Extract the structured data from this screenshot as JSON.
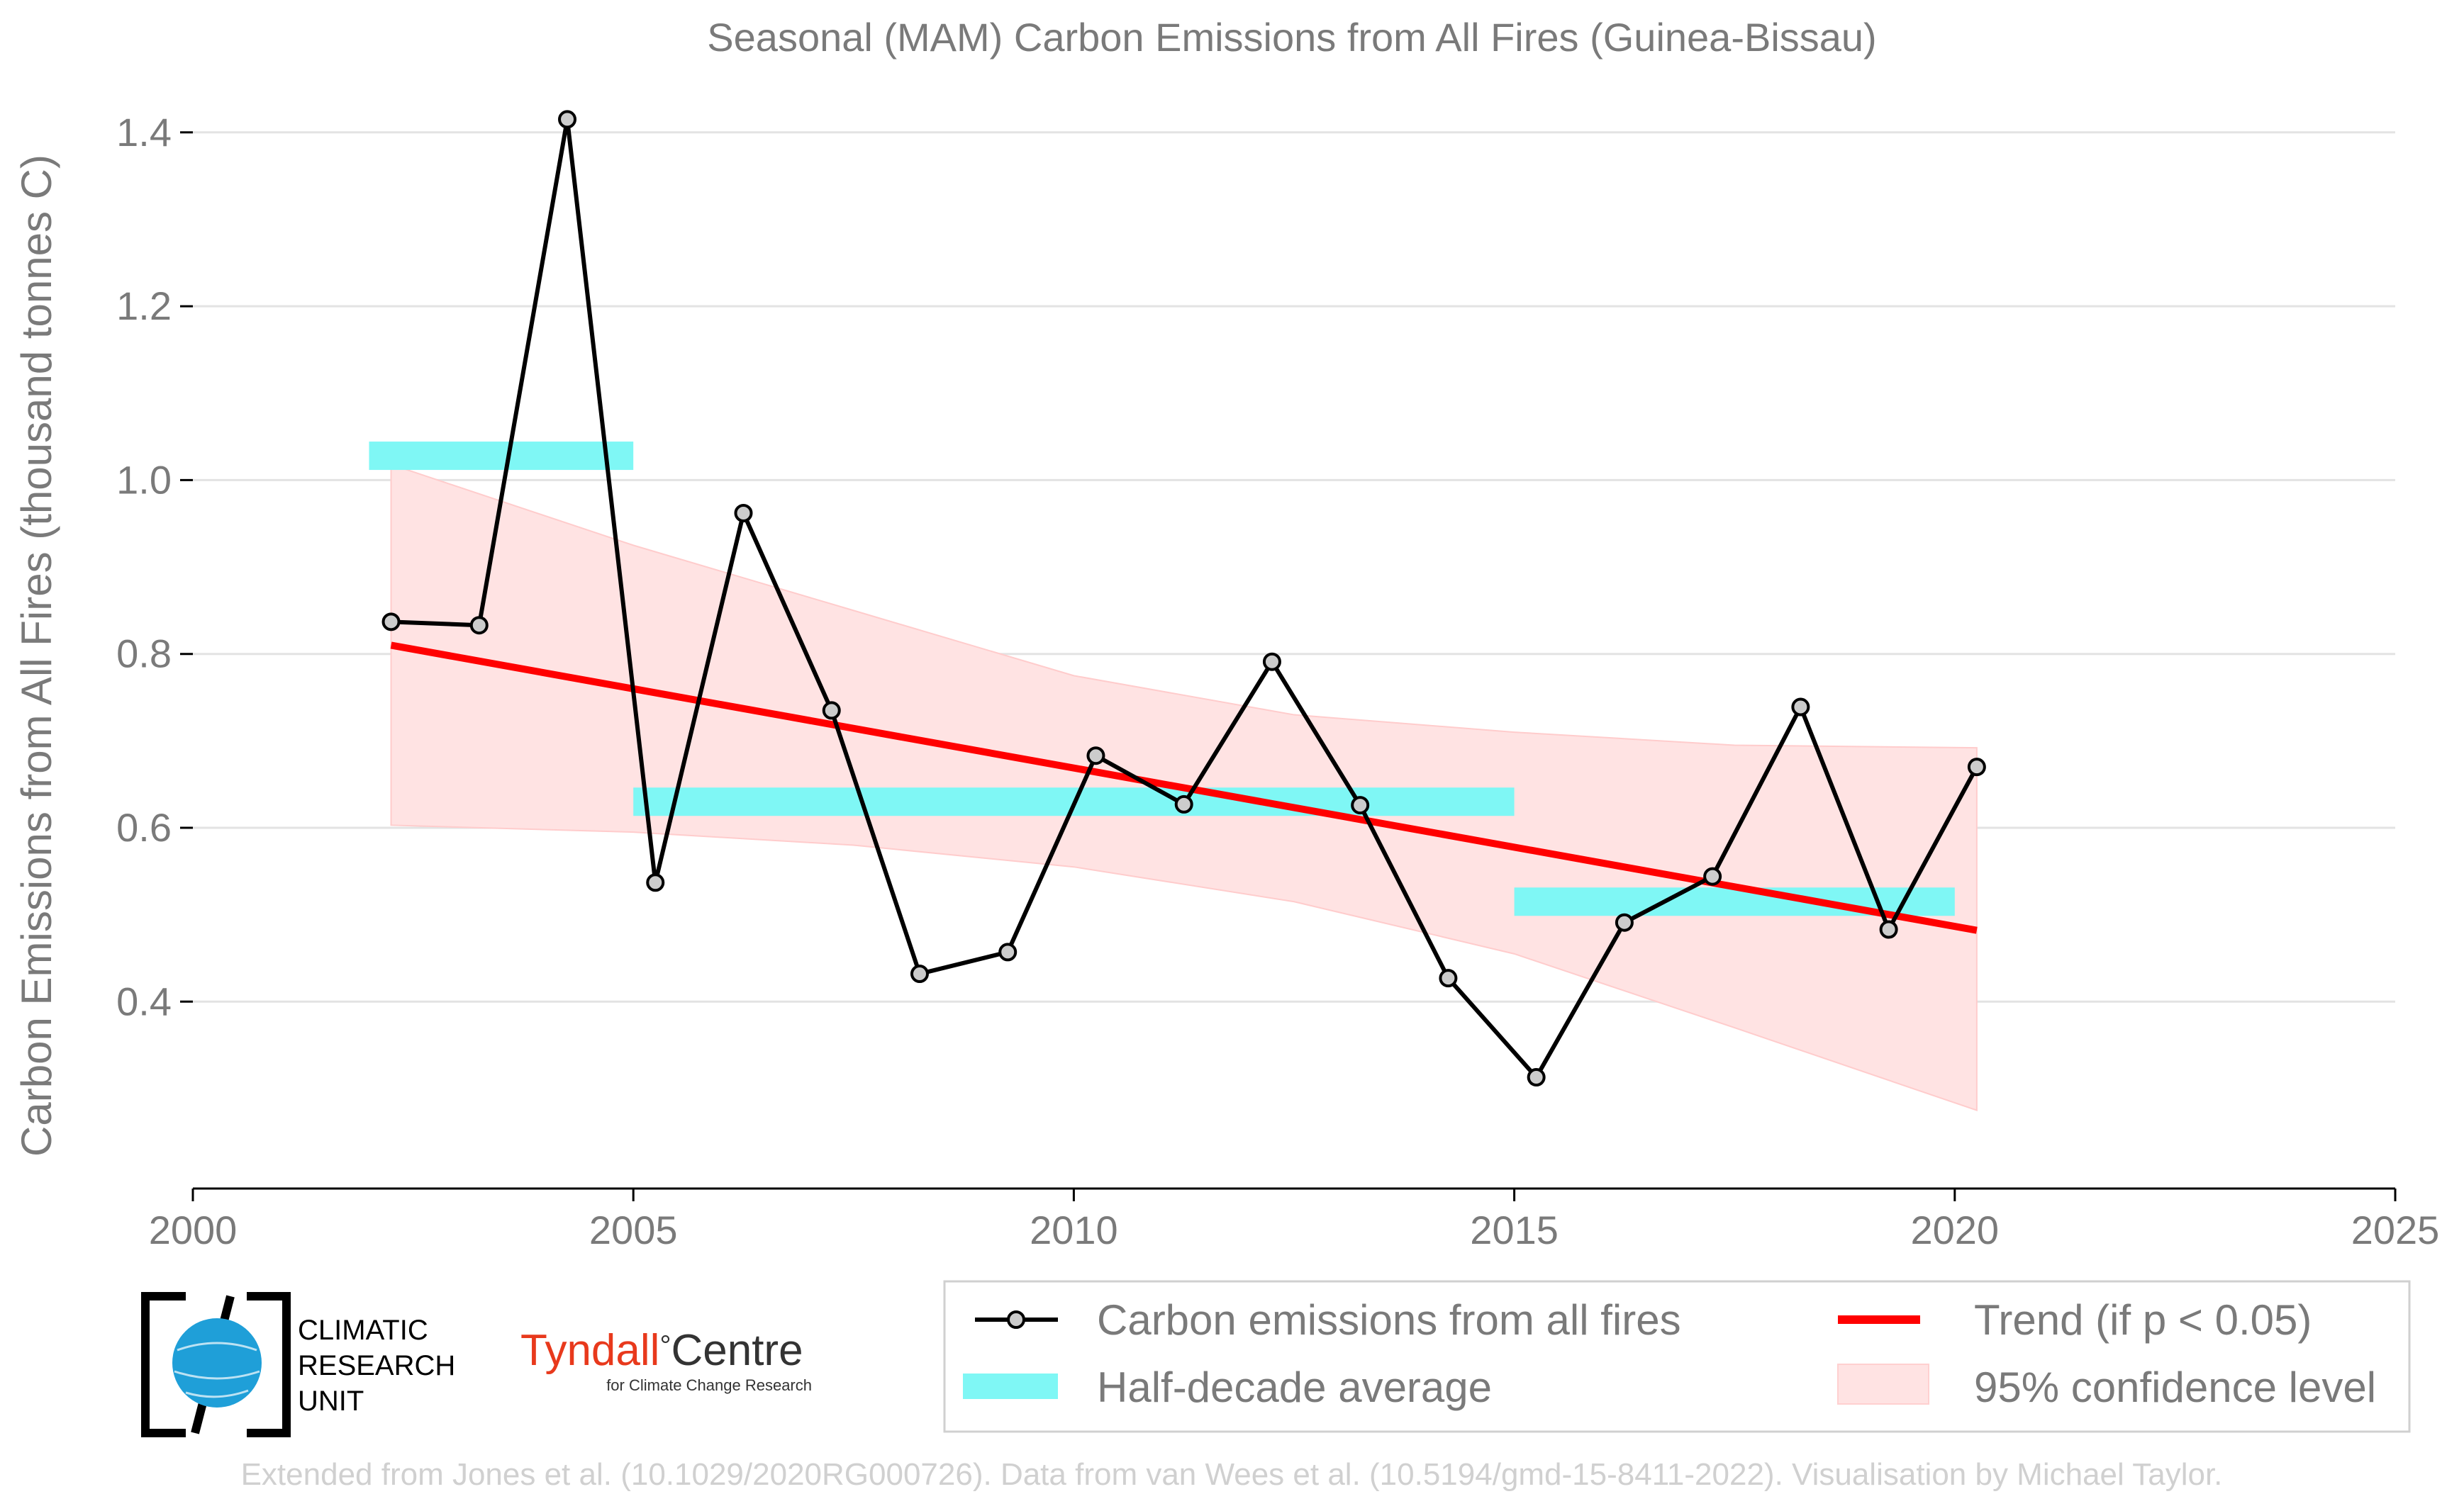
{
  "chart_data": {
    "type": "line",
    "title": "Seasonal (MAM) Carbon Emissions from All Fires (Guinea-Bissau)",
    "ylabel": "Carbon Emissions from All Fires (thousand tonnes C)",
    "xlabel": "",
    "xlim": [
      2000,
      2025
    ],
    "ylim": [
      0.185,
      1.43
    ],
    "xticks": [
      "2000",
      "2005",
      "2010",
      "2015",
      "2020",
      "2025"
    ],
    "yticks": [
      "0.4",
      "0.6",
      "0.8",
      "1.0",
      "1.2",
      "1.4"
    ],
    "grid": true,
    "series": [
      {
        "name": "Carbon emissions from all fires",
        "color": "#000000",
        "x": [
          2002.25,
          2003.25,
          2004.25,
          2005.25,
          2006.25,
          2007.25,
          2008.25,
          2009.25,
          2010.25,
          2011.25,
          2012.25,
          2013.25,
          2014.25,
          2015.25,
          2016.25,
          2017.25,
          2018.25,
          2019.25,
          2020.25
        ],
        "y": [
          0.837,
          0.833,
          1.415,
          0.537,
          0.962,
          0.735,
          0.432,
          0.457,
          0.683,
          0.627,
          0.791,
          0.626,
          0.427,
          0.313,
          0.491,
          0.544,
          0.739,
          0.483,
          0.67
        ]
      },
      {
        "name": "Half-decade average",
        "color": "#7ff7f5",
        "segments": [
          {
            "x0": 2002,
            "x1": 2005,
            "y": 1.028
          },
          {
            "x0": 2005,
            "x1": 2015,
            "y": 0.63
          },
          {
            "x0": 2015,
            "x1": 2020,
            "y": 0.515
          }
        ]
      },
      {
        "name": "Trend (if p < 0.05)",
        "color": "#ff0000",
        "x": [
          2002.25,
          2020.25
        ],
        "y": [
          0.81,
          0.482
        ]
      },
      {
        "name": "95% confidence level",
        "color": "#ffe3e3",
        "x": [
          2002.25,
          2005,
          2007.5,
          2010,
          2012.5,
          2015,
          2017.5,
          2020.25
        ],
        "upper": [
          1.018,
          0.925,
          0.85,
          0.775,
          0.73,
          0.71,
          0.695,
          0.692
        ],
        "lower": [
          0.603,
          0.595,
          0.58,
          0.555,
          0.515,
          0.455,
          0.37,
          0.275
        ]
      }
    ]
  },
  "legend": {
    "items": [
      "Carbon emissions from all fires",
      "Trend (if p < 0.05)",
      "Half-decade average",
      "95% confidence level"
    ]
  },
  "logos": {
    "cru_line1": "CLIMATIC",
    "cru_line2": "RESEARCH",
    "cru_line3": "UNIT",
    "tyndall_name": "Tyndall",
    "tyndall_degree": "°",
    "tyndall_centre": "Centre",
    "tyndall_sub": "for Climate Change Research"
  },
  "credit": "Extended from Jones et al. (10.1029/2020RG000726). Data from van Wees et al. (10.5194/gmd-15-8411-2022). Visualisation by Michael Taylor."
}
